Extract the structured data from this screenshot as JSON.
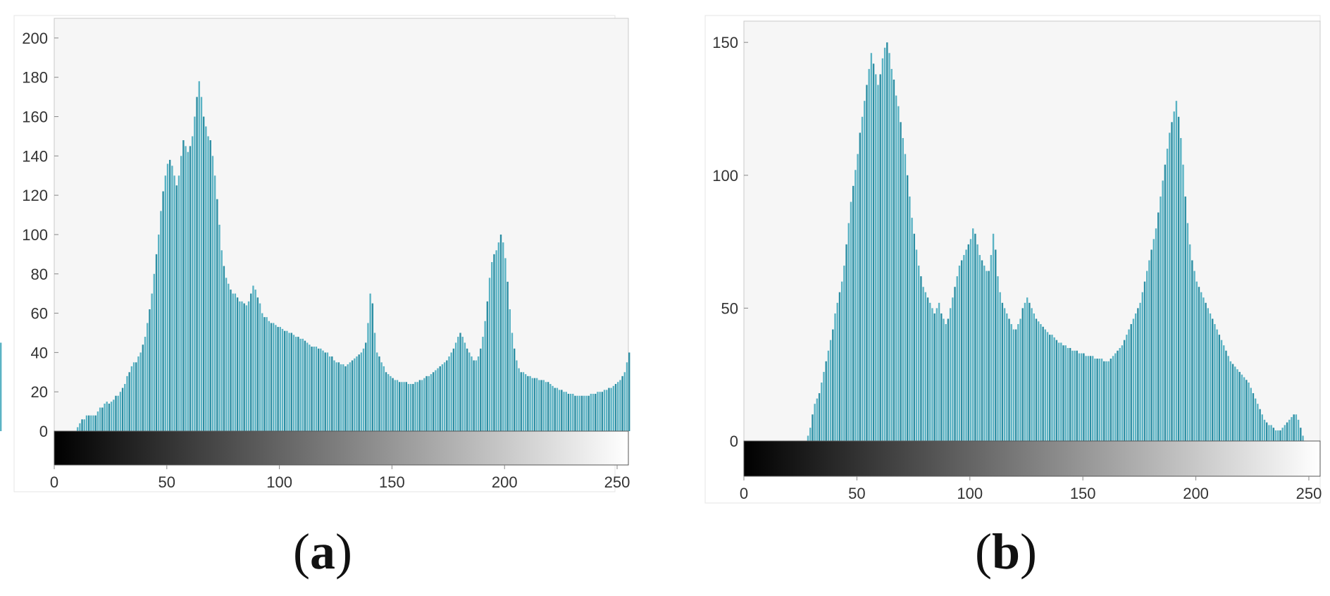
{
  "colors": {
    "bar": "#5bb3c4",
    "bar_dark": "#2c8ea3",
    "axes_bg": "#f6f6f6",
    "frame": "#c9c9c9"
  },
  "panels": [
    {
      "label_open": "(",
      "label_letter": "a",
      "label_close": ")",
      "chart_data": {
        "type": "bar",
        "title": "",
        "xlabel": "",
        "ylabel": "",
        "xlim": [
          0,
          255
        ],
        "ylim": [
          0,
          210
        ],
        "xticks": [
          "0",
          "50",
          "100",
          "150",
          "200",
          "250"
        ],
        "yticks": [
          "0",
          "20",
          "40",
          "60",
          "80",
          "100",
          "120",
          "140",
          "160",
          "180",
          "200"
        ],
        "colorbar": "grayscale",
        "bins_x": [
          0,
          1,
          2,
          3,
          4,
          5,
          6,
          7,
          8,
          9,
          10,
          11,
          12,
          13,
          14,
          15,
          16,
          17,
          18,
          19,
          20,
          21,
          22,
          23,
          24,
          25,
          26,
          27,
          28,
          29,
          30,
          31,
          32,
          33,
          34,
          35,
          36,
          37,
          38,
          39,
          40,
          41,
          42,
          43,
          44,
          45,
          46,
          47,
          48,
          49,
          50,
          51,
          52,
          53,
          54,
          55,
          56,
          57,
          58,
          59,
          60,
          61,
          62,
          63,
          64,
          65,
          66,
          67,
          68,
          69,
          70,
          71,
          72,
          73,
          74,
          75,
          76,
          77,
          78,
          79,
          80,
          81,
          82,
          83,
          84,
          85,
          86,
          87,
          88,
          89,
          90,
          91,
          92,
          93,
          94,
          95,
          96,
          97,
          98,
          99,
          100,
          101,
          102,
          103,
          104,
          105,
          106,
          107,
          108,
          109,
          110,
          111,
          112,
          113,
          114,
          115,
          116,
          117,
          118,
          119,
          120,
          121,
          122,
          123,
          124,
          125,
          126,
          127,
          128,
          129,
          130,
          131,
          132,
          133,
          134,
          135,
          136,
          137,
          138,
          139,
          140,
          141,
          142,
          143,
          144,
          145,
          146,
          147,
          148,
          149,
          150,
          151,
          152,
          153,
          154,
          155,
          156,
          157,
          158,
          159,
          160,
          161,
          162,
          163,
          164,
          165,
          166,
          167,
          168,
          169,
          170,
          171,
          172,
          173,
          174,
          175,
          176,
          177,
          178,
          179,
          180,
          181,
          182,
          183,
          184,
          185,
          186,
          187,
          188,
          189,
          190,
          191,
          192,
          193,
          194,
          195,
          196,
          197,
          198,
          199,
          200,
          201,
          202,
          203,
          204,
          205,
          206,
          207,
          208,
          209,
          210,
          211,
          212,
          213,
          214,
          215,
          216,
          217,
          218,
          219,
          220,
          221,
          222,
          223,
          224,
          225,
          226,
          227,
          228,
          229,
          230,
          231,
          232,
          233,
          234,
          235,
          236,
          237,
          238,
          239,
          240,
          241,
          242,
          243,
          244,
          245,
          246,
          247,
          248,
          249,
          250,
          251,
          252,
          253,
          254,
          255
        ],
        "values": [
          0,
          0,
          0,
          0,
          0,
          0,
          0,
          0,
          0,
          0,
          2,
          4,
          6,
          6,
          8,
          8,
          8,
          8,
          8,
          10,
          12,
          12,
          14,
          15,
          14,
          15,
          16,
          18,
          18,
          20,
          22,
          24,
          28,
          30,
          33,
          35,
          35,
          38,
          40,
          44,
          48,
          55,
          62,
          70,
          80,
          90,
          100,
          112,
          122,
          130,
          136,
          138,
          135,
          130,
          125,
          130,
          140,
          148,
          145,
          142,
          145,
          150,
          160,
          170,
          178,
          170,
          160,
          155,
          150,
          148,
          140,
          130,
          118,
          105,
          92,
          84,
          78,
          75,
          72,
          70,
          70,
          68,
          66,
          66,
          65,
          64,
          66,
          70,
          74,
          72,
          68,
          65,
          60,
          58,
          58,
          56,
          55,
          55,
          54,
          53,
          53,
          52,
          51,
          51,
          50,
          50,
          49,
          48,
          48,
          47,
          47,
          46,
          45,
          44,
          43,
          43,
          43,
          42,
          42,
          41,
          40,
          40,
          38,
          38,
          36,
          35,
          35,
          34,
          34,
          33,
          34,
          35,
          36,
          37,
          38,
          39,
          40,
          42,
          45,
          55,
          70,
          65,
          50,
          40,
          38,
          35,
          33,
          30,
          29,
          28,
          27,
          26,
          26,
          25,
          25,
          25,
          25,
          24,
          24,
          24,
          25,
          25,
          26,
          26,
          27,
          28,
          28,
          29,
          30,
          31,
          32,
          33,
          34,
          35,
          36,
          38,
          40,
          42,
          45,
          48,
          50,
          48,
          45,
          42,
          40,
          38,
          36,
          36,
          38,
          42,
          48,
          56,
          66,
          78,
          86,
          90,
          92,
          96,
          100,
          96,
          88,
          76,
          62,
          50,
          42,
          36,
          32,
          30,
          30,
          29,
          28,
          28,
          27,
          27,
          27,
          26,
          26,
          26,
          25,
          25,
          24,
          23,
          22,
          22,
          21,
          21,
          20,
          20,
          19,
          19,
          19,
          18,
          18,
          18,
          18,
          18,
          18,
          18,
          19,
          19,
          19,
          20,
          20,
          20,
          21,
          21,
          22,
          22,
          23,
          24,
          25,
          26,
          28,
          30,
          35,
          40,
          45
        ]
      }
    },
    {
      "label_open": "(",
      "label_letter": "b",
      "label_close": ")",
      "chart_data": {
        "type": "bar",
        "title": "",
        "xlabel": "",
        "ylabel": "",
        "xlim": [
          0,
          255
        ],
        "ylim": [
          0,
          158
        ],
        "xticks": [
          "0",
          "50",
          "100",
          "150",
          "200",
          "250"
        ],
        "yticks": [
          "0",
          "50",
          "100",
          "150"
        ],
        "colorbar": "grayscale",
        "bins_x": [
          0,
          1,
          2,
          3,
          4,
          5,
          6,
          7,
          8,
          9,
          10,
          11,
          12,
          13,
          14,
          15,
          16,
          17,
          18,
          19,
          20,
          21,
          22,
          23,
          24,
          25,
          26,
          27,
          28,
          29,
          30,
          31,
          32,
          33,
          34,
          35,
          36,
          37,
          38,
          39,
          40,
          41,
          42,
          43,
          44,
          45,
          46,
          47,
          48,
          49,
          50,
          51,
          52,
          53,
          54,
          55,
          56,
          57,
          58,
          59,
          60,
          61,
          62,
          63,
          64,
          65,
          66,
          67,
          68,
          69,
          70,
          71,
          72,
          73,
          74,
          75,
          76,
          77,
          78,
          79,
          80,
          81,
          82,
          83,
          84,
          85,
          86,
          87,
          88,
          89,
          90,
          91,
          92,
          93,
          94,
          95,
          96,
          97,
          98,
          99,
          100,
          101,
          102,
          103,
          104,
          105,
          106,
          107,
          108,
          109,
          110,
          111,
          112,
          113,
          114,
          115,
          116,
          117,
          118,
          119,
          120,
          121,
          122,
          123,
          124,
          125,
          126,
          127,
          128,
          129,
          130,
          131,
          132,
          133,
          134,
          135,
          136,
          137,
          138,
          139,
          140,
          141,
          142,
          143,
          144,
          145,
          146,
          147,
          148,
          149,
          150,
          151,
          152,
          153,
          154,
          155,
          156,
          157,
          158,
          159,
          160,
          161,
          162,
          163,
          164,
          165,
          166,
          167,
          168,
          169,
          170,
          171,
          172,
          173,
          174,
          175,
          176,
          177,
          178,
          179,
          180,
          181,
          182,
          183,
          184,
          185,
          186,
          187,
          188,
          189,
          190,
          191,
          192,
          193,
          194,
          195,
          196,
          197,
          198,
          199,
          200,
          201,
          202,
          203,
          204,
          205,
          206,
          207,
          208,
          209,
          210,
          211,
          212,
          213,
          214,
          215,
          216,
          217,
          218,
          219,
          220,
          221,
          222,
          223,
          224,
          225,
          226,
          227,
          228,
          229,
          230,
          231,
          232,
          233,
          234,
          235,
          236,
          237,
          238,
          239,
          240,
          241,
          242,
          243,
          244,
          245,
          246,
          247,
          248,
          249,
          250,
          251,
          252,
          253,
          254,
          255
        ],
        "values": [
          0,
          0,
          0,
          0,
          0,
          0,
          0,
          0,
          0,
          0,
          0,
          0,
          0,
          0,
          0,
          0,
          0,
          0,
          0,
          0,
          0,
          0,
          0,
          0,
          0,
          0,
          0,
          0,
          2,
          5,
          10,
          14,
          16,
          18,
          22,
          26,
          30,
          34,
          38,
          42,
          48,
          52,
          56,
          60,
          66,
          74,
          82,
          90,
          96,
          102,
          108,
          116,
          122,
          128,
          134,
          140,
          146,
          142,
          138,
          134,
          138,
          144,
          148,
          150,
          146,
          140,
          136,
          130,
          126,
          120,
          114,
          108,
          100,
          92,
          84,
          78,
          72,
          66,
          62,
          58,
          56,
          54,
          52,
          50,
          48,
          50,
          52,
          48,
          46,
          44,
          46,
          50,
          54,
          58,
          62,
          66,
          68,
          70,
          72,
          74,
          76,
          80,
          78,
          74,
          70,
          68,
          66,
          64,
          64,
          70,
          78,
          72,
          62,
          56,
          52,
          50,
          48,
          46,
          44,
          42,
          42,
          44,
          46,
          50,
          52,
          54,
          52,
          50,
          48,
          46,
          45,
          44,
          43,
          42,
          41,
          40,
          40,
          39,
          38,
          37,
          37,
          36,
          36,
          35,
          35,
          34,
          34,
          34,
          33,
          33,
          33,
          32,
          32,
          32,
          32,
          31,
          31,
          31,
          31,
          30,
          30,
          30,
          31,
          32,
          33,
          34,
          35,
          36,
          38,
          40,
          42,
          44,
          46,
          48,
          50,
          52,
          56,
          60,
          64,
          68,
          72,
          76,
          80,
          86,
          92,
          98,
          104,
          110,
          116,
          120,
          124,
          128,
          122,
          114,
          104,
          92,
          82,
          74,
          68,
          64,
          60,
          58,
          56,
          54,
          52,
          50,
          48,
          46,
          44,
          42,
          40,
          38,
          36,
          34,
          32,
          30,
          29,
          28,
          27,
          26,
          25,
          24,
          23,
          22,
          20,
          18,
          16,
          14,
          12,
          10,
          8,
          7,
          6,
          6,
          5,
          4,
          4,
          4,
          5,
          6,
          7,
          8,
          9,
          10,
          10,
          8,
          5,
          2
        ]
      }
    }
  ]
}
